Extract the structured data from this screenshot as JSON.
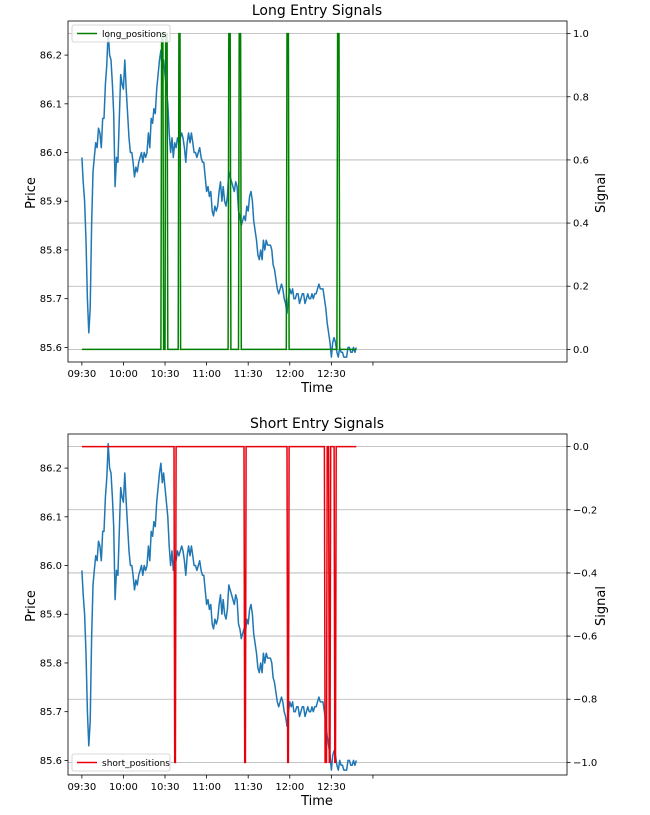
{
  "chart_data": [
    {
      "type": "line",
      "title": "Long Entry Signals",
      "xlabel": "Time",
      "ylabel": "Price",
      "y2label": "Signal",
      "xlim": [
        -10,
        350
      ],
      "ylim": [
        85.57,
        86.27
      ],
      "y2lim": [
        -0.04,
        1.04
      ],
      "xticks": [
        0,
        30,
        60,
        90,
        120,
        150,
        180,
        210
      ],
      "xtick_labels": [
        "09:30",
        "10:00",
        "10:30",
        "11:00",
        "11:30",
        "12:00",
        "12:30",
        ""
      ],
      "yticks": [
        85.6,
        85.7,
        85.8,
        85.9,
        86.0,
        86.1,
        86.2
      ],
      "ytick_labels": [
        "85.6",
        "85.7",
        "85.8",
        "85.9",
        "86.0",
        "86.1",
        "86.2"
      ],
      "y2ticks": [
        0,
        0.2,
        0.4,
        0.6,
        0.8,
        1.0
      ],
      "y2tick_labels": [
        "0.0",
        "0.2",
        "0.4",
        "0.6",
        "0.8",
        "1.0"
      ],
      "grid": "y2",
      "legend": {
        "entries": [
          "long_positions"
        ],
        "position": "top-left"
      },
      "series": [
        {
          "axis": "right",
          "color": "#008000",
          "values": [
            [
              0,
              0
            ],
            [
              57,
              0
            ],
            [
              57.5,
              1
            ],
            [
              58.5,
              1
            ],
            [
              59,
              0
            ],
            [
              60,
              0
            ],
            [
              60.5,
              1
            ],
            [
              61.5,
              1
            ],
            [
              62,
              0
            ],
            [
              69.5,
              0
            ],
            [
              70,
              1
            ],
            [
              70.8,
              1
            ],
            [
              71.2,
              0
            ],
            [
              105.5,
              0
            ],
            [
              106,
              1
            ],
            [
              107,
              1
            ],
            [
              107.5,
              0
            ],
            [
              113,
              0
            ],
            [
              113.5,
              1
            ],
            [
              114.5,
              1
            ],
            [
              115,
              0
            ],
            [
              147.5,
              0
            ],
            [
              148,
              1
            ],
            [
              149,
              1
            ],
            [
              149.5,
              0
            ],
            [
              184,
              0
            ],
            [
              184.5,
              1
            ],
            [
              185.5,
              1
            ],
            [
              186,
              0
            ],
            [
              198,
              0
            ]
          ]
        }
      ]
    },
    {
      "type": "line",
      "title": "Short Entry Signals",
      "xlabel": "Time",
      "ylabel": "Price",
      "y2label": "Signal",
      "xlim": [
        -10,
        350
      ],
      "ylim": [
        85.57,
        86.27
      ],
      "y2lim": [
        -1.04,
        0.04
      ],
      "xticks": [
        0,
        30,
        60,
        90,
        120,
        150,
        180,
        210
      ],
      "xtick_labels": [
        "09:30",
        "10:00",
        "10:30",
        "11:00",
        "11:30",
        "12:00",
        "12:30",
        ""
      ],
      "yticks": [
        85.6,
        85.7,
        85.8,
        85.9,
        86.0,
        86.1,
        86.2
      ],
      "ytick_labels": [
        "85.6",
        "85.7",
        "85.8",
        "85.9",
        "86.0",
        "86.1",
        "86.2"
      ],
      "y2ticks": [
        -1.0,
        -0.8,
        -0.6,
        -0.4,
        -0.2,
        0
      ],
      "y2tick_labels": [
        "−1.0",
        "−0.8",
        "−0.6",
        "−0.4",
        "−0.2",
        "0.0"
      ],
      "grid": "y2",
      "legend": {
        "entries": [
          "short_positions"
        ],
        "position": "bottom-left"
      },
      "series": [
        {
          "axis": "right",
          "color": "#e8000b",
          "values": [
            [
              0,
              0
            ],
            [
              66.5,
              0
            ],
            [
              67,
              -1
            ],
            [
              67.5,
              -1
            ],
            [
              68,
              0
            ],
            [
              117,
              0
            ],
            [
              117.5,
              -1
            ],
            [
              118,
              -1
            ],
            [
              118.5,
              0
            ],
            [
              148,
              0
            ],
            [
              148.5,
              -1
            ],
            [
              149,
              -1
            ],
            [
              149.5,
              0
            ],
            [
              175,
              0
            ],
            [
              175.5,
              -1
            ],
            [
              176.5,
              -1
            ],
            [
              177,
              0
            ],
            [
              178,
              0
            ],
            [
              178.5,
              -1
            ],
            [
              179,
              -1
            ],
            [
              179.5,
              0
            ],
            [
              182,
              0
            ],
            [
              182.5,
              -1
            ],
            [
              183,
              -1
            ],
            [
              183.5,
              0
            ],
            [
              198,
              0
            ]
          ]
        }
      ]
    }
  ],
  "price_series": {
    "color": "#1f77b4",
    "values": [
      [
        0,
        85.99
      ],
      [
        1,
        85.94
      ],
      [
        2,
        85.9
      ],
      [
        3,
        85.82
      ],
      [
        4,
        85.7
      ],
      [
        5,
        85.63
      ],
      [
        6,
        85.68
      ],
      [
        7,
        85.85
      ],
      [
        8,
        85.96
      ],
      [
        9,
        85.99
      ],
      [
        10,
        86.02
      ],
      [
        11,
        86.01
      ],
      [
        12,
        86.05
      ],
      [
        13,
        86.04
      ],
      [
        14,
        86.01
      ],
      [
        15,
        86.07
      ],
      [
        16,
        86.07
      ],
      [
        17,
        86.14
      ],
      [
        18,
        86.18
      ],
      [
        19,
        86.25
      ],
      [
        20,
        86.2
      ],
      [
        21,
        86.19
      ],
      [
        22,
        86.14
      ],
      [
        23,
        86.08
      ],
      [
        24,
        85.93
      ],
      [
        25,
        85.99
      ],
      [
        26,
        85.98
      ],
      [
        27,
        86.07
      ],
      [
        28,
        86.16
      ],
      [
        29,
        86.14
      ],
      [
        30,
        86.13
      ],
      [
        31,
        86.19
      ],
      [
        32,
        86.13
      ],
      [
        33,
        86.08
      ],
      [
        34,
        86.03
      ],
      [
        35,
        86.0
      ],
      [
        36,
        86.0
      ],
      [
        37,
        85.98
      ],
      [
        38,
        85.95
      ],
      [
        39,
        85.97
      ],
      [
        40,
        85.96
      ],
      [
        41,
        85.98
      ],
      [
        42,
        85.99
      ],
      [
        43,
        86.0
      ],
      [
        44,
        85.98
      ],
      [
        45,
        86.0
      ],
      [
        46,
        85.99
      ],
      [
        47,
        86.0
      ],
      [
        48,
        86.04
      ],
      [
        49,
        86.01
      ],
      [
        50,
        86.07
      ],
      [
        51,
        86.06
      ],
      [
        52,
        86.09
      ],
      [
        53,
        86.08
      ],
      [
        54,
        86.13
      ],
      [
        55,
        86.16
      ],
      [
        56,
        86.19
      ],
      [
        57,
        86.21
      ],
      [
        58,
        86.17
      ],
      [
        59,
        86.19
      ],
      [
        60,
        86.16
      ],
      [
        61,
        86.13
      ],
      [
        62,
        86.1
      ],
      [
        63,
        86.04
      ],
      [
        64,
        86.0
      ],
      [
        65,
        86.03
      ],
      [
        66,
        85.99
      ],
      [
        67,
        86.02
      ],
      [
        68,
        86.01
      ],
      [
        69,
        86.03
      ],
      [
        70,
        86.02
      ],
      [
        71,
        86.03
      ],
      [
        72,
        86.04
      ],
      [
        73,
        86.03
      ],
      [
        74,
        86.01
      ],
      [
        75,
        85.98
      ],
      [
        76,
        86.02
      ],
      [
        77,
        86.04
      ],
      [
        78,
        86.02
      ],
      [
        79,
        86.04
      ],
      [
        80,
        86.02
      ],
      [
        81,
        86.0
      ],
      [
        82,
        86.0
      ],
      [
        83,
        85.99
      ],
      [
        84,
        86.0
      ],
      [
        85,
        86.01
      ],
      [
        86,
        85.99
      ],
      [
        87,
        85.98
      ],
      [
        88,
        85.98
      ],
      [
        89,
        85.95
      ],
      [
        90,
        85.92
      ],
      [
        91,
        85.93
      ],
      [
        92,
        85.91
      ],
      [
        93,
        85.92
      ],
      [
        94,
        85.88
      ],
      [
        95,
        85.87
      ],
      [
        96,
        85.89
      ],
      [
        97,
        85.88
      ],
      [
        98,
        85.89
      ],
      [
        99,
        85.92
      ],
      [
        100,
        85.94
      ],
      [
        101,
        85.9
      ],
      [
        102,
        85.93
      ],
      [
        103,
        85.9
      ],
      [
        104,
        85.89
      ],
      [
        105,
        85.91
      ],
      [
        106,
        85.96
      ],
      [
        107,
        85.95
      ],
      [
        108,
        85.94
      ],
      [
        109,
        85.93
      ],
      [
        110,
        85.92
      ],
      [
        111,
        85.94
      ],
      [
        112,
        85.93
      ],
      [
        113,
        85.88
      ],
      [
        114,
        85.87
      ],
      [
        115,
        85.85
      ],
      [
        116,
        85.86
      ],
      [
        117,
        85.87
      ],
      [
        118,
        85.86
      ],
      [
        119,
        85.89
      ],
      [
        120,
        85.88
      ],
      [
        121,
        85.91
      ],
      [
        122,
        85.92
      ],
      [
        123,
        85.9
      ],
      [
        124,
        85.86
      ],
      [
        125,
        85.84
      ],
      [
        126,
        85.82
      ],
      [
        127,
        85.79
      ],
      [
        128,
        85.78
      ],
      [
        129,
        85.8
      ],
      [
        130,
        85.78
      ],
      [
        131,
        85.82
      ],
      [
        132,
        85.8
      ],
      [
        133,
        85.82
      ],
      [
        134,
        85.81
      ],
      [
        135,
        85.81
      ],
      [
        136,
        85.81
      ],
      [
        137,
        85.8
      ],
      [
        138,
        85.77
      ],
      [
        139,
        85.76
      ],
      [
        140,
        85.74
      ],
      [
        141,
        85.72
      ],
      [
        142,
        85.71
      ],
      [
        143,
        85.72
      ],
      [
        144,
        85.73
      ],
      [
        145,
        85.72
      ],
      [
        146,
        85.7
      ],
      [
        147,
        85.69
      ],
      [
        148,
        85.67
      ],
      [
        149,
        85.7
      ],
      [
        150,
        85.72
      ],
      [
        151,
        85.71
      ],
      [
        152,
        85.72
      ],
      [
        153,
        85.7
      ],
      [
        154,
        85.7
      ],
      [
        155,
        85.71
      ],
      [
        156,
        85.71
      ],
      [
        157,
        85.69
      ],
      [
        158,
        85.7
      ],
      [
        159,
        85.71
      ],
      [
        160,
        85.71
      ],
      [
        161,
        85.69
      ],
      [
        162,
        85.7
      ],
      [
        163,
        85.71
      ],
      [
        164,
        85.7
      ],
      [
        165,
        85.7
      ],
      [
        166,
        85.71
      ],
      [
        167,
        85.7
      ],
      [
        168,
        85.71
      ],
      [
        169,
        85.71
      ],
      [
        170,
        85.72
      ],
      [
        171,
        85.73
      ],
      [
        172,
        85.72
      ],
      [
        173,
        85.72
      ],
      [
        174,
        85.72
      ],
      [
        175,
        85.7
      ],
      [
        176,
        85.68
      ],
      [
        177,
        85.65
      ],
      [
        178,
        85.63
      ],
      [
        179,
        85.61
      ],
      [
        180,
        85.58
      ],
      [
        181,
        85.61
      ],
      [
        182,
        85.62
      ],
      [
        183,
        85.61
      ],
      [
        184,
        85.59
      ],
      [
        185,
        85.58
      ],
      [
        186,
        85.6
      ],
      [
        187,
        85.59
      ],
      [
        188,
        85.59
      ],
      [
        189,
        85.58
      ],
      [
        190,
        85.58
      ],
      [
        191,
        85.58
      ],
      [
        192,
        85.6
      ],
      [
        193,
        85.6
      ],
      [
        194,
        85.59
      ],
      [
        195,
        85.59
      ],
      [
        196,
        85.6
      ],
      [
        197,
        85.59
      ],
      [
        198,
        85.6
      ]
    ]
  }
}
